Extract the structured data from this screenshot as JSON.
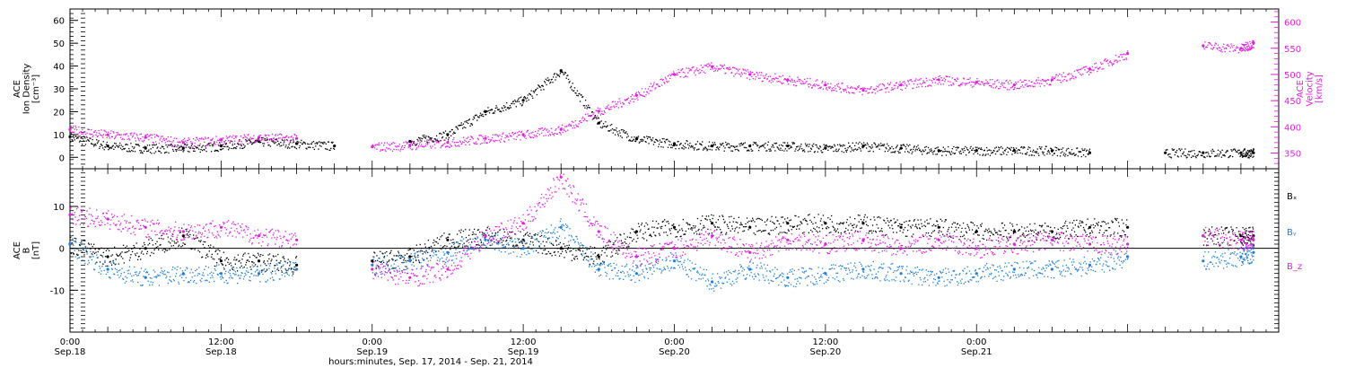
{
  "chart_data": [
    {
      "type": "scatter",
      "panel": "top",
      "ylabel": "ACE\nIon Density\n[cm⁻³]",
      "ylabel_lines": [
        "ACE",
        "Ion Density",
        "[cm⁻³]"
      ],
      "ylim": [
        -5,
        65
      ],
      "yticks": [
        0,
        10,
        20,
        30,
        40,
        50,
        60
      ],
      "y2label_lines": [
        "ACE",
        "Velocity",
        "[km/s]"
      ],
      "y2lim": [
        320,
        625
      ],
      "y2ticks": [
        350,
        400,
        450,
        500,
        550,
        600
      ],
      "y2_color": "#e01fe0",
      "series": [
        {
          "color": "#000000",
          "axis": "left",
          "x_hours": [
            0,
            3,
            6,
            9,
            12,
            15,
            18,
            21,
            24,
            27,
            30,
            33,
            36,
            39,
            42,
            45,
            48,
            51,
            54,
            57,
            60,
            63,
            66,
            69,
            72,
            75,
            78,
            81,
            84,
            87,
            90,
            93,
            94
          ],
          "values": [
            9,
            5,
            4,
            4,
            5,
            7,
            6,
            5,
            null,
            7,
            10,
            20,
            25,
            38,
            15,
            8,
            6,
            5,
            5,
            5,
            4,
            5,
            4,
            3,
            3,
            3,
            3,
            2,
            null,
            2,
            2,
            2,
            2
          ]
        },
        {
          "color": "#e01fe0",
          "axis": "right",
          "x_hours": [
            0,
            3,
            6,
            9,
            12,
            15,
            18,
            21,
            24,
            27,
            30,
            33,
            36,
            39,
            42,
            45,
            48,
            51,
            54,
            57,
            60,
            63,
            66,
            69,
            72,
            75,
            78,
            81,
            84,
            87,
            90,
            93,
            94
          ],
          "values": [
            395,
            385,
            380,
            370,
            375,
            380,
            378,
            null,
            362,
            365,
            370,
            378,
            385,
            395,
            430,
            460,
            500,
            515,
            500,
            490,
            480,
            470,
            480,
            490,
            485,
            480,
            490,
            510,
            540,
            null,
            555,
            550,
            560
          ]
        }
      ]
    },
    {
      "type": "scatter",
      "panel": "bottom",
      "ylabel": "ACE\nB\n[nT]",
      "ylabel_lines": [
        "ACE",
        "B",
        "[nT]"
      ],
      "ylim": [
        -20,
        19
      ],
      "yticks": [
        -10,
        0,
        10
      ],
      "legend": [
        "Bₓ",
        "Bᵧ",
        "B_z"
      ],
      "legend_placement": "right",
      "series": [
        {
          "name": "Bₓ",
          "color": "#000000",
          "x_hours": [
            0,
            3,
            6,
            9,
            12,
            15,
            18,
            21,
            24,
            27,
            30,
            33,
            36,
            39,
            42,
            45,
            48,
            51,
            54,
            57,
            60,
            63,
            66,
            69,
            72,
            75,
            78,
            81,
            84,
            87,
            90,
            93,
            94
          ],
          "values": [
            1,
            -2,
            0,
            3,
            -3,
            -3,
            -4,
            null,
            -3,
            -2,
            2,
            3,
            2,
            0,
            -2,
            4,
            5,
            6,
            5,
            6,
            6,
            6,
            5,
            5,
            4,
            4,
            4,
            5,
            5,
            null,
            3,
            3,
            3
          ]
        },
        {
          "name": "Bᵧ",
          "color": "#1e7fd8",
          "x_hours": [
            0,
            3,
            6,
            9,
            12,
            15,
            18,
            21,
            24,
            27,
            30,
            33,
            36,
            39,
            42,
            45,
            48,
            51,
            54,
            57,
            60,
            63,
            66,
            69,
            72,
            75,
            78,
            81,
            84,
            87,
            90,
            93,
            94
          ],
          "values": [
            1,
            -5,
            -7,
            -6,
            -6,
            -6,
            -5,
            null,
            -4,
            -3,
            -1,
            2,
            0,
            5,
            -5,
            -6,
            -3,
            -8,
            -5,
            -7,
            -6,
            -5,
            -6,
            -7,
            -6,
            -5,
            -5,
            -4,
            -2,
            null,
            -3,
            -2,
            -1
          ]
        },
        {
          "name": "B_z",
          "color": "#e01fe0",
          "x_hours": [
            0,
            3,
            6,
            9,
            12,
            15,
            18,
            21,
            24,
            27,
            30,
            33,
            36,
            39,
            42,
            45,
            48,
            51,
            54,
            57,
            60,
            63,
            66,
            69,
            72,
            75,
            78,
            81,
            84,
            87,
            90,
            93,
            94
          ],
          "values": [
            8,
            7,
            5,
            4,
            5,
            3,
            2,
            null,
            -5,
            -7,
            -5,
            3,
            6,
            17,
            4,
            -2,
            0,
            3,
            -1,
            2,
            1,
            2,
            0,
            2,
            0,
            1,
            2,
            1,
            1,
            null,
            3,
            2,
            2
          ]
        }
      ],
      "zero_line": true
    }
  ],
  "x_axis": {
    "start": "Sep.17 24:00",
    "range_hours": [
      0,
      96
    ],
    "ticks": [
      {
        "h": 0,
        "time": "0:00",
        "date": "Sep.18"
      },
      {
        "h": 12,
        "time": "12:00",
        "date": "Sep.18"
      },
      {
        "h": 24,
        "time": "0:00",
        "date": "Sep.19"
      },
      {
        "h": 36,
        "time": "12:00",
        "date": "Sep.19"
      },
      {
        "h": 48,
        "time": "0:00",
        "date": "Sep.20"
      },
      {
        "h": 60,
        "time": "12:00",
        "date": "Sep.20"
      },
      {
        "h": 72,
        "time": "0:00",
        "date": "Sep.21"
      }
    ],
    "label": "hours:minutes, Sep. 17, 2014 - Sep. 21, 2014"
  }
}
